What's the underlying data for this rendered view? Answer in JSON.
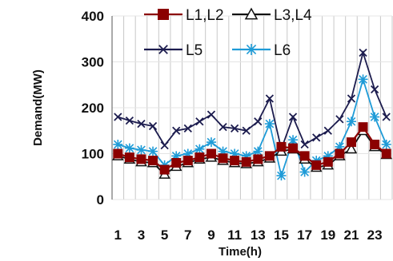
{
  "chart_data": {
    "type": "line",
    "title": "",
    "xlabel": "Time(h)",
    "ylabel": "Demand(MW)",
    "ylim": [
      0,
      400
    ],
    "yticks": [
      "0",
      "100",
      "200",
      "300",
      "400"
    ],
    "x": [
      1,
      2,
      3,
      4,
      5,
      6,
      7,
      8,
      9,
      10,
      11,
      12,
      13,
      14,
      15,
      16,
      17,
      18,
      19,
      20,
      21,
      22,
      23,
      24
    ],
    "xtick_labels": [
      "1",
      "3",
      "5",
      "7",
      "9",
      "11",
      "13",
      "15",
      "17",
      "19",
      "21",
      "23"
    ],
    "grid": true,
    "legend_position": "top",
    "series": [
      {
        "name": "L1,L2",
        "marker": "square",
        "color": "#8b0000",
        "values": [
          100,
          92,
          88,
          85,
          65,
          80,
          85,
          92,
          100,
          90,
          85,
          82,
          88,
          95,
          115,
          112,
          95,
          75,
          82,
          100,
          125,
          158,
          120,
          100
        ]
      },
      {
        "name": "L3,L4",
        "marker": "triangle",
        "color": "#111111",
        "values": [
          95,
          88,
          82,
          80,
          55,
          72,
          80,
          88,
          92,
          85,
          80,
          78,
          82,
          90,
          105,
          110,
          88,
          70,
          75,
          95,
          110,
          150,
          115,
          98
        ]
      },
      {
        "name": "L5",
        "marker": "x",
        "color": "#1c1c4e",
        "values": [
          180,
          172,
          165,
          160,
          118,
          150,
          155,
          170,
          185,
          158,
          155,
          150,
          170,
          220,
          110,
          180,
          120,
          135,
          150,
          175,
          220,
          320,
          240,
          180
        ]
      },
      {
        "name": "L6",
        "marker": "asterisk",
        "color": "#1e9bd7",
        "values": [
          120,
          112,
          108,
          105,
          75,
          95,
          100,
          110,
          125,
          105,
          100,
          95,
          105,
          165,
          52,
          130,
          60,
          85,
          95,
          115,
          170,
          262,
          180,
          120
        ]
      }
    ]
  }
}
